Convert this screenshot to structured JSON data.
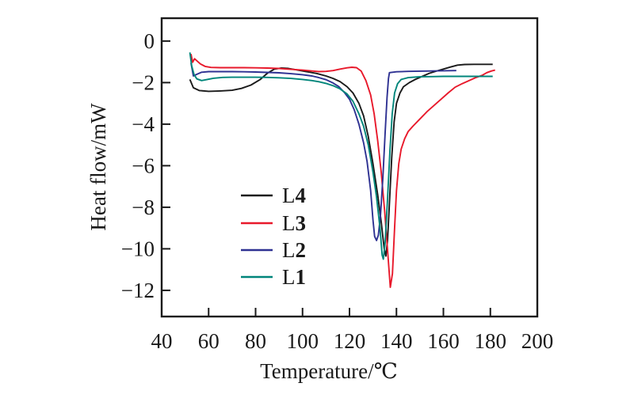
{
  "chart_data": {
    "type": "line",
    "title": "",
    "xlabel": "Temperature/℃",
    "ylabel": "Heat flow/mW",
    "xlim": [
      40,
      200
    ],
    "ylim": [
      -13.26,
      1.1
    ],
    "grid": false,
    "axis_color": "#1a1a1a",
    "background_color": "#ffffff",
    "legend_position": "inside-lower-left",
    "xticks": [
      {
        "value": 40,
        "label": "40"
      },
      {
        "value": 60,
        "label": "60"
      },
      {
        "value": 80,
        "label": "80"
      },
      {
        "value": 100,
        "label": "100"
      },
      {
        "value": 120,
        "label": "120"
      },
      {
        "value": 140,
        "label": "140"
      },
      {
        "value": 160,
        "label": "160"
      },
      {
        "value": 180,
        "label": "180"
      },
      {
        "value": 200,
        "label": "200"
      }
    ],
    "yticks": [
      {
        "value": 0,
        "label": "0"
      },
      {
        "value": -2,
        "label": "−2"
      },
      {
        "value": -4,
        "label": "−4"
      },
      {
        "value": -6,
        "label": "−6"
      },
      {
        "value": -8,
        "label": "−8"
      },
      {
        "value": -10,
        "label": "−10"
      },
      {
        "value": -12,
        "label": "−12"
      }
    ],
    "series": [
      {
        "name": "L4",
        "color": "#1a1a1a",
        "peak_temperature_c": 135.5,
        "peak_heat_flow_mw": -10.35,
        "points": [
          [
            52,
            -1.85
          ],
          [
            53.5,
            -2.25
          ],
          [
            56,
            -2.38
          ],
          [
            60,
            -2.42
          ],
          [
            65,
            -2.4
          ],
          [
            70,
            -2.37
          ],
          [
            74,
            -2.28
          ],
          [
            78,
            -2.12
          ],
          [
            82,
            -1.85
          ],
          [
            85,
            -1.55
          ],
          [
            88,
            -1.35
          ],
          [
            91,
            -1.3
          ],
          [
            94,
            -1.32
          ],
          [
            98,
            -1.4
          ],
          [
            102,
            -1.48
          ],
          [
            106,
            -1.56
          ],
          [
            110,
            -1.68
          ],
          [
            113,
            -1.8
          ],
          [
            116,
            -1.95
          ],
          [
            119,
            -2.2
          ],
          [
            121.5,
            -2.5
          ],
          [
            124,
            -3.0
          ],
          [
            126,
            -3.6
          ],
          [
            128,
            -4.6
          ],
          [
            130,
            -5.9
          ],
          [
            132,
            -7.4
          ],
          [
            133.5,
            -8.7
          ],
          [
            134.8,
            -10.0
          ],
          [
            135.5,
            -10.35
          ],
          [
            136.2,
            -9.6
          ],
          [
            137,
            -7.8
          ],
          [
            138,
            -5.6
          ],
          [
            139,
            -3.9
          ],
          [
            140,
            -3.0
          ],
          [
            141.5,
            -2.5
          ],
          [
            143,
            -2.2
          ],
          [
            145.5,
            -2.0
          ],
          [
            148,
            -1.85
          ],
          [
            151,
            -1.7
          ],
          [
            154,
            -1.55
          ],
          [
            157,
            -1.45
          ],
          [
            160,
            -1.35
          ],
          [
            163,
            -1.25
          ],
          [
            166,
            -1.16
          ],
          [
            169,
            -1.13
          ],
          [
            173,
            -1.12
          ],
          [
            177,
            -1.12
          ],
          [
            181,
            -1.12
          ]
        ]
      },
      {
        "name": "L3",
        "color": "#e8192b",
        "peak_temperature_c": 137.4,
        "peak_heat_flow_mw": -11.85,
        "points": [
          [
            52.5,
            -0.62
          ],
          [
            53.2,
            -1.02
          ],
          [
            54,
            -0.85
          ],
          [
            55,
            -0.95
          ],
          [
            56.5,
            -1.1
          ],
          [
            58.5,
            -1.22
          ],
          [
            61,
            -1.27
          ],
          [
            65,
            -1.28
          ],
          [
            70,
            -1.28
          ],
          [
            75,
            -1.28
          ],
          [
            80,
            -1.29
          ],
          [
            85,
            -1.3
          ],
          [
            90,
            -1.32
          ],
          [
            95,
            -1.36
          ],
          [
            100,
            -1.4
          ],
          [
            104,
            -1.44
          ],
          [
            107,
            -1.47
          ],
          [
            110,
            -1.46
          ],
          [
            113,
            -1.42
          ],
          [
            116,
            -1.35
          ],
          [
            119,
            -1.29
          ],
          [
            121,
            -1.26
          ],
          [
            123,
            -1.28
          ],
          [
            125,
            -1.45
          ],
          [
            127,
            -1.9
          ],
          [
            129,
            -2.6
          ],
          [
            130.5,
            -3.5
          ],
          [
            132,
            -4.8
          ],
          [
            133.5,
            -6.3
          ],
          [
            135,
            -8.2
          ],
          [
            136.3,
            -10.2
          ],
          [
            137.4,
            -11.85
          ],
          [
            138.3,
            -11.2
          ],
          [
            139.2,
            -9.0
          ],
          [
            140,
            -7.2
          ],
          [
            141,
            -5.9
          ],
          [
            142,
            -5.2
          ],
          [
            143.5,
            -4.7
          ],
          [
            145,
            -4.35
          ],
          [
            147,
            -4.1
          ],
          [
            150,
            -3.75
          ],
          [
            153,
            -3.4
          ],
          [
            156,
            -3.1
          ],
          [
            159,
            -2.8
          ],
          [
            162,
            -2.5
          ],
          [
            165,
            -2.22
          ],
          [
            168,
            -2.05
          ],
          [
            171,
            -1.9
          ],
          [
            174,
            -1.75
          ],
          [
            176.5,
            -1.65
          ],
          [
            178.5,
            -1.52
          ],
          [
            180.5,
            -1.44
          ],
          [
            182,
            -1.4
          ]
        ]
      },
      {
        "name": "L2",
        "color": "#2e3192",
        "peak_temperature_c": 131.5,
        "peak_heat_flow_mw": -9.6,
        "points": [
          [
            52.5,
            -1.05
          ],
          [
            53.5,
            -1.68
          ],
          [
            55,
            -1.6
          ],
          [
            57,
            -1.5
          ],
          [
            60,
            -1.47
          ],
          [
            65,
            -1.47
          ],
          [
            70,
            -1.47
          ],
          [
            75,
            -1.48
          ],
          [
            80,
            -1.49
          ],
          [
            85,
            -1.51
          ],
          [
            90,
            -1.53
          ],
          [
            95,
            -1.57
          ],
          [
            100,
            -1.62
          ],
          [
            104,
            -1.68
          ],
          [
            107,
            -1.76
          ],
          [
            110,
            -1.86
          ],
          [
            113,
            -2.02
          ],
          [
            115.5,
            -2.2
          ],
          [
            118,
            -2.5
          ],
          [
            120,
            -2.8
          ],
          [
            122,
            -3.3
          ],
          [
            124,
            -4.0
          ],
          [
            126,
            -4.9
          ],
          [
            127.5,
            -5.8
          ],
          [
            129,
            -7.2
          ],
          [
            130,
            -8.6
          ],
          [
            130.7,
            -9.4
          ],
          [
            131.5,
            -9.6
          ],
          [
            132.3,
            -9.35
          ],
          [
            133.2,
            -8.4
          ],
          [
            134.2,
            -6.6
          ],
          [
            135.2,
            -4.4
          ],
          [
            136,
            -2.7
          ],
          [
            136.6,
            -1.8
          ],
          [
            137,
            -1.52
          ],
          [
            140,
            -1.48
          ],
          [
            145,
            -1.46
          ],
          [
            150,
            -1.45
          ],
          [
            155,
            -1.44
          ],
          [
            160,
            -1.43
          ],
          [
            165.5,
            -1.42
          ]
        ]
      },
      {
        "name": "L1",
        "color": "#00857a",
        "peak_temperature_c": 134.4,
        "peak_heat_flow_mw": -10.5,
        "points": [
          [
            52,
            -0.55
          ],
          [
            52.8,
            -1.2
          ],
          [
            53.8,
            -1.62
          ],
          [
            55,
            -1.82
          ],
          [
            57,
            -1.9
          ],
          [
            59,
            -1.86
          ],
          [
            62,
            -1.79
          ],
          [
            66,
            -1.75
          ],
          [
            70,
            -1.74
          ],
          [
            75,
            -1.74
          ],
          [
            80,
            -1.74
          ],
          [
            85,
            -1.75
          ],
          [
            90,
            -1.77
          ],
          [
            95,
            -1.8
          ],
          [
            100,
            -1.85
          ],
          [
            104,
            -1.9
          ],
          [
            107,
            -1.96
          ],
          [
            110,
            -2.04
          ],
          [
            113,
            -2.15
          ],
          [
            116,
            -2.3
          ],
          [
            119,
            -2.55
          ],
          [
            121.5,
            -2.9
          ],
          [
            124,
            -3.5
          ],
          [
            126,
            -4.1
          ],
          [
            128,
            -5.0
          ],
          [
            130,
            -6.3
          ],
          [
            131.5,
            -7.5
          ],
          [
            133,
            -9.0
          ],
          [
            133.9,
            -10.3
          ],
          [
            134.4,
            -10.5
          ],
          [
            135.2,
            -9.7
          ],
          [
            136.2,
            -7.6
          ],
          [
            137.2,
            -5.3
          ],
          [
            138.2,
            -3.5
          ],
          [
            139.2,
            -2.5
          ],
          [
            140.5,
            -2.05
          ],
          [
            142,
            -1.85
          ],
          [
            145,
            -1.76
          ],
          [
            150,
            -1.72
          ],
          [
            155,
            -1.71
          ],
          [
            160,
            -1.7
          ],
          [
            165,
            -1.7
          ],
          [
            170,
            -1.7
          ],
          [
            175,
            -1.7
          ],
          [
            181,
            -1.7
          ]
        ]
      }
    ]
  },
  "legend": {
    "entries": [
      {
        "prefix": "L",
        "digit": "4",
        "series": "L4",
        "color": "#1a1a1a"
      },
      {
        "prefix": "L",
        "digit": "3",
        "series": "L3",
        "color": "#e8192b"
      },
      {
        "prefix": "L",
        "digit": "2",
        "series": "L2",
        "color": "#2e3192"
      },
      {
        "prefix": "L",
        "digit": "1",
        "series": "L1",
        "color": "#00857a"
      }
    ]
  }
}
